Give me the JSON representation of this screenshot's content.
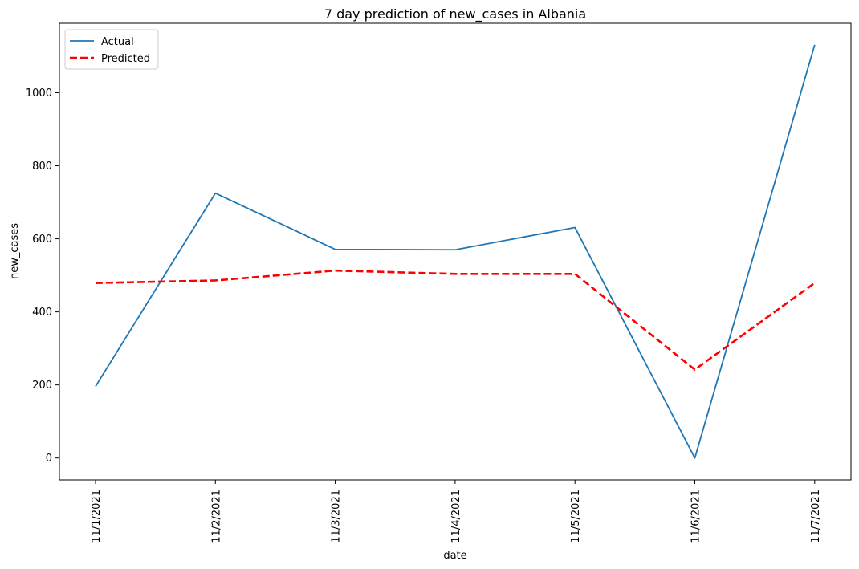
{
  "chart_data": {
    "type": "line",
    "title": "7 day prediction of new_cases in Albania",
    "xlabel": "date",
    "ylabel": "new_cases",
    "categories": [
      "11/1/2021",
      "11/2/2021",
      "11/3/2021",
      "11/4/2021",
      "11/5/2021",
      "11/6/2021",
      "11/7/2021"
    ],
    "yticks": [
      0,
      200,
      400,
      600,
      800,
      1000
    ],
    "ylim": [
      -60,
      1190
    ],
    "grid": false,
    "legend_position": "top-left",
    "series": [
      {
        "name": "Actual",
        "values": [
          196,
          725,
          571,
          570,
          631,
          0,
          1131
        ],
        "color": "#1f77b4",
        "style": "solid"
      },
      {
        "name": "Predicted",
        "values": [
          479,
          486,
          513,
          504,
          504,
          242,
          479
        ],
        "color": "#ff0000",
        "style": "dashed"
      }
    ]
  }
}
